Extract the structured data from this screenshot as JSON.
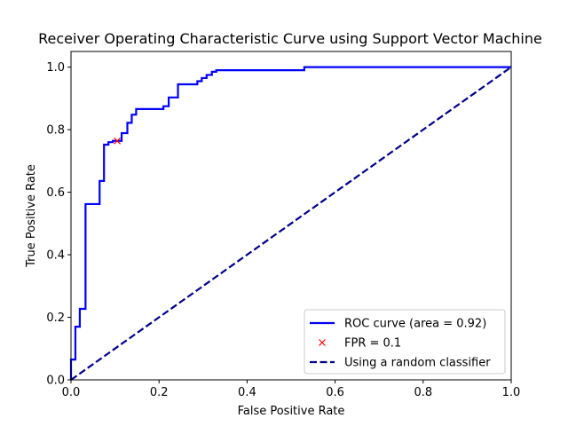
{
  "chart_data": {
    "type": "line",
    "title": "Receiver Operating Characteristic Curve using Support Vector Machine",
    "xlabel": "False Positive Rate",
    "ylabel": "True Positive Rate",
    "xlim": [
      0.0,
      1.0
    ],
    "ylim": [
      0.0,
      1.05
    ],
    "x_ticks": [
      "0.0",
      "0.2",
      "0.4",
      "0.6",
      "0.8",
      "1.0"
    ],
    "y_ticks": [
      "0.0",
      "0.2",
      "0.4",
      "0.6",
      "0.8",
      "1.0"
    ],
    "grid": false,
    "legend_position": "lower-right",
    "series": [
      {
        "name": "ROC curve (area = 0.92)",
        "style": "solid",
        "color": "#0000ff",
        "x": [
          0,
          0,
          0.01,
          0.01,
          0.02,
          0.02,
          0.033,
          0.033,
          0.065,
          0.065,
          0.075,
          0.075,
          0.085,
          0.085,
          0.095,
          0.095,
          0.115,
          0.115,
          0.128,
          0.128,
          0.138,
          0.138,
          0.148,
          0.148,
          0.21,
          0.21,
          0.222,
          0.222,
          0.243,
          0.243,
          0.287,
          0.287,
          0.297,
          0.297,
          0.308,
          0.308,
          0.32,
          0.32,
          0.33,
          0.33,
          0.53,
          0.53,
          1.0
        ],
        "y": [
          0,
          0.065,
          0.065,
          0.17,
          0.17,
          0.227,
          0.227,
          0.562,
          0.562,
          0.636,
          0.636,
          0.752,
          0.752,
          0.76,
          0.76,
          0.764,
          0.764,
          0.789,
          0.789,
          0.822,
          0.822,
          0.848,
          0.848,
          0.866,
          0.866,
          0.875,
          0.875,
          0.903,
          0.903,
          0.945,
          0.945,
          0.955,
          0.955,
          0.965,
          0.965,
          0.975,
          0.975,
          0.985,
          0.985,
          0.99,
          0.99,
          1.0,
          1.0
        ]
      },
      {
        "name": "FPR = 0.1",
        "style": "marker-x",
        "color": "#ff0000",
        "x": [
          0.105
        ],
        "y": [
          0.764
        ]
      },
      {
        "name": "Using a random classifier",
        "style": "dashed",
        "color": "#00008b",
        "x": [
          0,
          1
        ],
        "y": [
          0,
          1
        ]
      }
    ]
  }
}
